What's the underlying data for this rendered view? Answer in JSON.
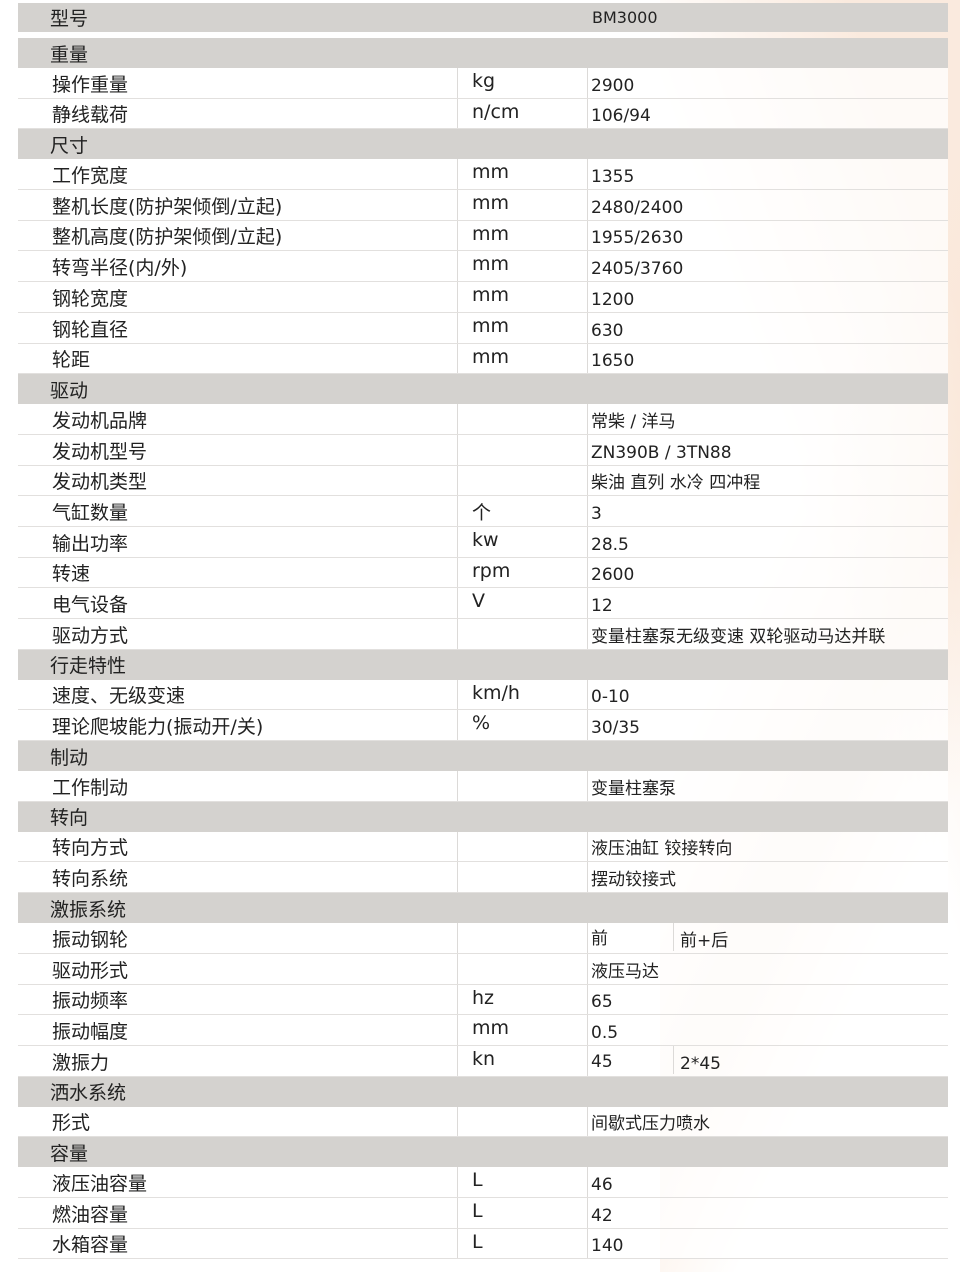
{
  "model": {
    "label": "型号",
    "value": "BM3000"
  },
  "sections": [
    {
      "title": "重量",
      "rows": [
        {
          "label": "操作重量",
          "unit": "kg",
          "values": [
            "2900"
          ]
        },
        {
          "label": "静线载荷",
          "unit": "n/cm",
          "values": [
            "106/94"
          ]
        }
      ]
    },
    {
      "title": "尺寸",
      "rows": [
        {
          "label": "工作宽度",
          "unit": "mm",
          "values": [
            "1355"
          ]
        },
        {
          "label": "整机长度(防护架倾倒/立起)",
          "unit": "mm",
          "values": [
            "2480/2400"
          ]
        },
        {
          "label": "整机高度(防护架倾倒/立起)",
          "unit": "mm",
          "values": [
            "1955/2630"
          ]
        },
        {
          "label": "转弯半径(内/外)",
          "unit": "mm",
          "values": [
            "2405/3760"
          ]
        },
        {
          "label": "钢轮宽度",
          "unit": "mm",
          "values": [
            "1200"
          ]
        },
        {
          "label": "钢轮直径",
          "unit": "mm",
          "values": [
            "630"
          ]
        },
        {
          "label": "轮距",
          "unit": "mm",
          "values": [
            "1650"
          ]
        }
      ]
    },
    {
      "title": "驱动",
      "rows": [
        {
          "label": "发动机品牌",
          "unit": "",
          "values": [
            "常柴 / 洋马"
          ]
        },
        {
          "label": "发动机型号",
          "unit": "",
          "values": [
            "ZN390B / 3TN88"
          ]
        },
        {
          "label": "发动机类型",
          "unit": "",
          "values": [
            "柴油 直列 水冷 四冲程"
          ]
        },
        {
          "label": "气缸数量",
          "unit": "个",
          "values": [
            "3"
          ]
        },
        {
          "label": "输出功率",
          "unit": "kw",
          "values": [
            "28.5"
          ]
        },
        {
          "label": "转速",
          "unit": "rpm",
          "values": [
            "2600"
          ]
        },
        {
          "label": "电气设备",
          "unit": "V",
          "values": [
            "12"
          ]
        },
        {
          "label": "驱动方式",
          "unit": "",
          "values": [
            "变量柱塞泵无级变速 双轮驱动马达并联"
          ]
        }
      ]
    },
    {
      "title": "行走特性",
      "rows": [
        {
          "label": "速度、无级变速",
          "unit": "km/h",
          "values": [
            "0-10"
          ]
        },
        {
          "label": "理论爬坡能力(振动开/关)",
          "unit": "%",
          "values": [
            "30/35"
          ]
        }
      ]
    },
    {
      "title": "制动",
      "rows": [
        {
          "label": "工作制动",
          "unit": "",
          "values": [
            "变量柱塞泵"
          ]
        }
      ]
    },
    {
      "title": "转向",
      "rows": [
        {
          "label": "转向方式",
          "unit": "",
          "values": [
            "液压油缸 铰接转向"
          ]
        },
        {
          "label": "转向系统",
          "unit": "",
          "values": [
            "摆动铰接式"
          ]
        }
      ]
    },
    {
      "title": "激振系统",
      "rows": [
        {
          "label": "振动钢轮",
          "unit": "",
          "values": [
            "前",
            "前+后"
          ]
        },
        {
          "label": "驱动形式",
          "unit": "",
          "values": [
            "液压马达"
          ]
        },
        {
          "label": "振动频率",
          "unit": "hz",
          "values": [
            "65"
          ]
        },
        {
          "label": "振动幅度",
          "unit": "mm",
          "values": [
            "0.5"
          ]
        },
        {
          "label": "激振力",
          "unit": "kn",
          "values": [
            "45",
            "2*45"
          ]
        }
      ]
    },
    {
      "title": "洒水系统",
      "rows": [
        {
          "label": "形式",
          "unit": "",
          "values": [
            "间歇式压力喷水"
          ]
        }
      ]
    },
    {
      "title": "容量",
      "rows": [
        {
          "label": "液压油容量",
          "unit": "L",
          "values": [
            "46"
          ]
        },
        {
          "label": "燃油容量",
          "unit": "L",
          "values": [
            "42"
          ]
        },
        {
          "label": "水箱容量",
          "unit": "L",
          "values": [
            "140"
          ]
        }
      ]
    }
  ],
  "colors": {
    "header_bg": "#d4d2cf",
    "accent_decoration": "#f6d6be"
  }
}
